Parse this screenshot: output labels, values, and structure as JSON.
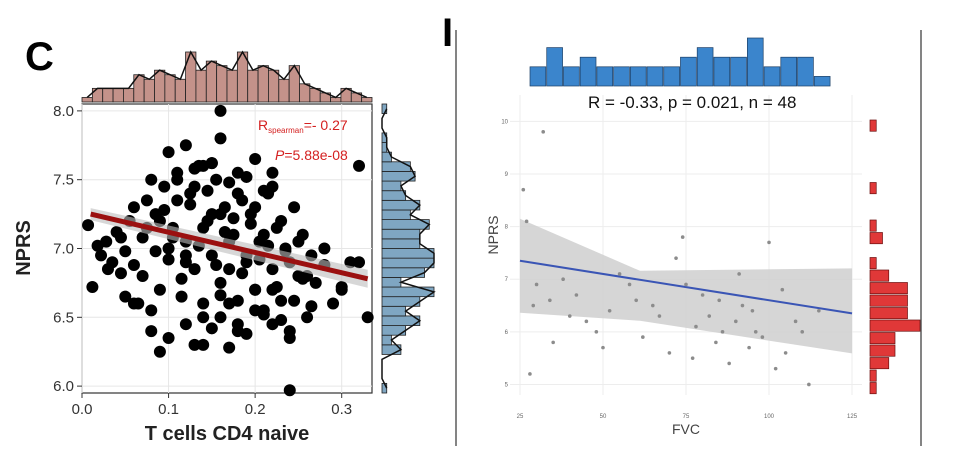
{
  "panel_left_letter": "C",
  "panel_right_letter": "I",
  "stats_left": {
    "r_label": "R",
    "r_sub": "spearman",
    "r_value": "=- 0.27",
    "p_label": "P",
    "p_value": "=5.88e-08"
  },
  "stats_right": {
    "text": "R = -0.33, p = 0.021, n = 48"
  },
  "colors": {
    "scatter_left": "#000000",
    "reg_left": "#9b1010",
    "hist_top_left": "#c4928a",
    "hist_right_left": "#7fa6c2",
    "scatter_right": "#8c8c8c",
    "reg_right": "#3a55b5",
    "band_right": "#cfcfcf",
    "hist_top_right": "#3b85cc",
    "hist_right_right": "#e03838"
  },
  "chart_data": [
    {
      "type": "scatter",
      "title": "",
      "xlabel": "T cells CD4 naive",
      "ylabel": "NPRS",
      "xlim": [
        0.0,
        0.335
      ],
      "ylim": [
        5.95,
        8.05
      ],
      "xticks": [
        "0.0",
        "0.1",
        "0.2",
        "0.3"
      ],
      "yticks": [
        "6.0",
        "6.5",
        "7.0",
        "7.5",
        "8.0"
      ],
      "regression": {
        "x": [
          0.01,
          0.33
        ],
        "y": [
          7.25,
          6.78
        ]
      },
      "spearman_r": -0.27,
      "p_value": "5.88e-08",
      "series": [
        {
          "x": [
            0.007,
            0.012,
            0.018,
            0.022,
            0.028,
            0.035,
            0.04,
            0.045,
            0.05,
            0.055,
            0.06,
            0.065,
            0.07,
            0.075,
            0.08,
            0.085,
            0.09,
            0.095,
            0.1,
            0.105,
            0.11,
            0.115,
            0.12,
            0.125,
            0.13,
            0.135,
            0.14,
            0.145,
            0.15,
            0.155,
            0.16,
            0.165,
            0.17,
            0.175,
            0.18,
            0.185,
            0.19,
            0.195,
            0.2,
            0.205,
            0.21,
            0.215,
            0.22,
            0.225,
            0.23,
            0.235,
            0.24,
            0.245,
            0.25,
            0.255,
            0.26,
            0.265,
            0.27,
            0.28,
            0.29,
            0.3,
            0.31,
            0.32,
            0.33,
            0.045,
            0.06,
            0.07,
            0.08,
            0.09,
            0.1,
            0.11,
            0.12,
            0.13,
            0.14,
            0.15,
            0.16,
            0.17,
            0.18,
            0.19,
            0.2,
            0.21,
            0.22,
            0.23,
            0.24,
            0.25,
            0.26,
            0.075,
            0.085,
            0.095,
            0.105,
            0.115,
            0.125,
            0.135,
            0.145,
            0.155,
            0.165,
            0.175,
            0.185,
            0.195,
            0.205,
            0.215,
            0.225,
            0.235,
            0.245,
            0.255,
            0.265,
            0.1,
            0.12,
            0.14,
            0.16,
            0.18,
            0.2,
            0.22,
            0.08,
            0.1,
            0.12,
            0.14,
            0.16,
            0.18,
            0.2,
            0.22,
            0.24,
            0.06,
            0.09,
            0.13,
            0.15,
            0.17,
            0.19,
            0.21,
            0.23,
            0.11,
            0.13,
            0.15,
            0.17,
            0.19,
            0.21,
            0.14,
            0.16,
            0.18,
            0.2,
            0.12,
            0.16,
            0.22,
            0.24,
            0.28,
            0.15,
            0.17,
            0.03,
            0.05,
            0.3,
            0.32
          ],
          "y": [
            7.17,
            6.72,
            7.02,
            6.95,
            7.05,
            6.9,
            7.12,
            6.82,
            6.98,
            7.2,
            6.88,
            6.6,
            7.08,
            7.35,
            6.55,
            7.25,
            6.7,
            7.45,
            6.92,
            7.15,
            7.55,
            6.65,
            7.05,
            7.4,
            6.85,
            7.6,
            6.5,
            7.2,
            6.95,
            7.5,
            6.75,
            7.3,
            6.6,
            7.1,
            6.45,
            7.35,
            6.9,
            7.25,
            6.7,
            7.05,
            6.55,
            7.4,
            6.85,
            7.15,
            6.62,
            7.0,
            6.4,
            7.3,
            6.8,
            7.1,
            6.5,
            6.95,
            6.75,
            6.88,
            6.6,
            6.72,
            6.9,
            7.6,
            6.5,
            7.08,
            7.3,
            6.8,
            7.5,
            7.2,
            7.0,
            7.35,
            6.9,
            7.45,
            7.15,
            7.62,
            7.25,
            7.05,
            7.4,
            6.95,
            7.3,
            7.1,
            6.7,
            7.2,
            6.9,
            7.05,
            6.8,
            7.15,
            6.98,
            7.28,
            7.08,
            6.78,
            7.32,
            7.02,
            7.42,
            6.88,
            7.12,
            7.22,
            6.82,
            7.18,
            6.92,
            7.02,
            6.72,
            6.98,
            6.62,
            6.78,
            6.58,
            7.7,
            7.75,
            7.6,
            7.8,
            7.55,
            7.65,
            7.45,
            6.4,
            6.35,
            6.45,
            6.3,
            6.5,
            6.4,
            6.55,
            6.45,
            6.35,
            6.6,
            6.25,
            6.3,
            6.42,
            6.28,
            6.38,
            6.52,
            6.48,
            7.5,
            7.58,
            7.62,
            7.48,
            7.52,
            7.42,
            6.6,
            6.66,
            6.62,
            6.7,
            6.95,
            8.0,
            7.55,
            5.97,
            7.0,
            7.25,
            6.85,
            6.85,
            6.65,
            6.7,
            6.9
          ]
        }
      ]
    },
    {
      "type": "scatter",
      "title": "",
      "xlabel": "FVC",
      "ylabel": "NPRS",
      "xlim": [
        22,
        128
      ],
      "ylim": [
        4.8,
        10.5
      ],
      "xticks": [
        "25",
        "50",
        "75",
        "100",
        "125"
      ],
      "yticks": [
        "5",
        "6",
        "7",
        "8",
        "9",
        "10"
      ],
      "regression": {
        "x": [
          25,
          125
        ],
        "y": [
          7.35,
          6.35
        ]
      },
      "stats": "R = -0.33, p = 0.021, n = 48",
      "series": [
        {
          "x": [
            26,
            27,
            28,
            29,
            30,
            32,
            34,
            35,
            38,
            40,
            42,
            45,
            48,
            50,
            52,
            55,
            58,
            60,
            62,
            65,
            67,
            70,
            72,
            74,
            75,
            77,
            78,
            80,
            82,
            84,
            85,
            86,
            88,
            90,
            91,
            92,
            94,
            95,
            96,
            98,
            100,
            102,
            104,
            105,
            108,
            110,
            112,
            115
          ],
          "y": [
            8.7,
            8.1,
            5.2,
            6.5,
            6.9,
            9.8,
            6.6,
            5.8,
            7.0,
            6.3,
            6.7,
            6.2,
            6.0,
            5.7,
            6.4,
            7.1,
            6.9,
            6.6,
            5.9,
            6.5,
            6.3,
            5.6,
            7.4,
            7.8,
            6.9,
            5.5,
            6.1,
            6.7,
            6.3,
            5.8,
            6.6,
            6.0,
            5.4,
            6.2,
            7.1,
            6.5,
            5.7,
            6.4,
            6.0,
            5.9,
            7.7,
            5.3,
            6.8,
            5.6,
            6.2,
            6.0,
            5.0,
            6.4
          ]
        }
      ]
    }
  ]
}
